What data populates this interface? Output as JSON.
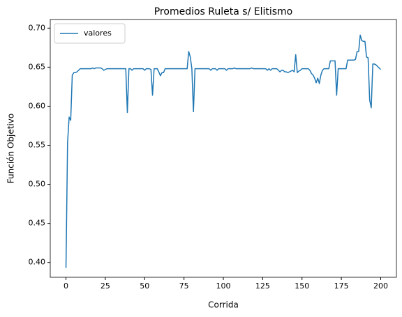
{
  "chart_data": {
    "type": "line",
    "title": "Promedios Ruleta s/ Elitismo",
    "x_label": "Corrida",
    "y_label": "Función Objetivo",
    "legend": "upper left",
    "grid": false,
    "xlim": [
      -10,
      210
    ],
    "ylim": [
      0.381,
      0.711
    ],
    "xticks": [
      0,
      25,
      50,
      75,
      100,
      125,
      150,
      175,
      200
    ],
    "yticks": [
      {
        "value": 0.4,
        "label": "0.40"
      },
      {
        "value": 0.45,
        "label": "0.45"
      },
      {
        "value": 0.5,
        "label": "0.50"
      },
      {
        "value": 0.55,
        "label": "0.55"
      },
      {
        "value": 0.6,
        "label": "0.60"
      },
      {
        "value": 0.65,
        "label": "0.65"
      },
      {
        "value": 0.7,
        "label": "0.70"
      }
    ],
    "x": [
      0,
      1,
      2,
      3,
      4,
      5,
      6,
      7,
      8,
      9,
      10,
      11,
      12,
      13,
      14,
      15,
      16,
      17,
      18,
      19,
      20,
      21,
      22,
      23,
      24,
      25,
      26,
      27,
      28,
      29,
      30,
      31,
      32,
      33,
      34,
      35,
      36,
      37,
      38,
      39,
      40,
      41,
      42,
      43,
      44,
      45,
      46,
      47,
      48,
      49,
      50,
      51,
      52,
      53,
      54,
      55,
      56,
      57,
      58,
      59,
      60,
      61,
      62,
      63,
      64,
      65,
      66,
      67,
      68,
      69,
      70,
      71,
      72,
      73,
      74,
      75,
      76,
      77,
      78,
      79,
      80,
      81,
      82,
      83,
      84,
      85,
      86,
      87,
      88,
      89,
      90,
      91,
      92,
      93,
      94,
      95,
      96,
      97,
      98,
      99,
      100,
      101,
      102,
      103,
      104,
      105,
      106,
      107,
      108,
      109,
      110,
      111,
      112,
      113,
      114,
      115,
      116,
      117,
      118,
      119,
      120,
      121,
      122,
      123,
      124,
      125,
      126,
      127,
      128,
      129,
      130,
      131,
      132,
      133,
      134,
      135,
      136,
      137,
      138,
      139,
      140,
      141,
      142,
      143,
      144,
      145,
      146,
      147,
      148,
      149,
      150,
      151,
      152,
      153,
      154,
      155,
      156,
      157,
      158,
      159,
      160,
      161,
      162,
      163,
      164,
      165,
      166,
      167,
      168,
      169,
      170,
      171,
      172,
      173,
      174,
      175,
      176,
      177,
      178,
      179,
      180,
      181,
      182,
      183,
      184,
      185,
      186,
      187,
      188,
      189,
      190,
      191,
      192,
      193,
      194,
      195,
      196,
      197,
      198,
      199,
      200
    ],
    "series": [
      {
        "name": "valores",
        "color": "#1f77b4",
        "values": [
          0.393,
          0.553,
          0.586,
          0.582,
          0.64,
          0.643,
          0.643,
          0.644,
          0.646,
          0.648,
          0.648,
          0.648,
          0.648,
          0.648,
          0.648,
          0.648,
          0.648,
          0.649,
          0.648,
          0.649,
          0.649,
          0.649,
          0.649,
          0.648,
          0.646,
          0.647,
          0.648,
          0.648,
          0.648,
          0.648,
          0.648,
          0.648,
          0.648,
          0.648,
          0.648,
          0.648,
          0.648,
          0.648,
          0.648,
          0.592,
          0.648,
          0.648,
          0.646,
          0.648,
          0.648,
          0.648,
          0.648,
          0.648,
          0.648,
          0.648,
          0.646,
          0.648,
          0.648,
          0.648,
          0.647,
          0.614,
          0.648,
          0.648,
          0.648,
          0.644,
          0.639,
          0.643,
          0.643,
          0.648,
          0.648,
          0.648,
          0.648,
          0.648,
          0.648,
          0.648,
          0.648,
          0.648,
          0.648,
          0.648,
          0.648,
          0.648,
          0.648,
          0.648,
          0.67,
          0.663,
          0.648,
          0.593,
          0.648,
          0.648,
          0.648,
          0.648,
          0.648,
          0.648,
          0.648,
          0.648,
          0.648,
          0.648,
          0.646,
          0.648,
          0.648,
          0.648,
          0.646,
          0.648,
          0.648,
          0.648,
          0.648,
          0.648,
          0.646,
          0.648,
          0.648,
          0.648,
          0.648,
          0.649,
          0.648,
          0.648,
          0.648,
          0.648,
          0.648,
          0.648,
          0.648,
          0.648,
          0.648,
          0.648,
          0.649,
          0.648,
          0.648,
          0.648,
          0.648,
          0.648,
          0.648,
          0.648,
          0.648,
          0.648,
          0.646,
          0.648,
          0.646,
          0.648,
          0.648,
          0.648,
          0.648,
          0.646,
          0.644,
          0.646,
          0.646,
          0.644,
          0.644,
          0.643,
          0.644,
          0.645,
          0.646,
          0.644,
          0.666,
          0.643,
          0.645,
          0.646,
          0.648,
          0.648,
          0.648,
          0.648,
          0.648,
          0.646,
          0.642,
          0.64,
          0.636,
          0.63,
          0.636,
          0.629,
          0.64,
          0.646,
          0.648,
          0.648,
          0.648,
          0.648,
          0.658,
          0.658,
          0.658,
          0.658,
          0.614,
          0.648,
          0.648,
          0.648,
          0.648,
          0.648,
          0.648,
          0.659,
          0.659,
          0.659,
          0.659,
          0.659,
          0.66,
          0.67,
          0.67,
          0.691,
          0.684,
          0.683,
          0.683,
          0.663,
          0.662,
          0.608,
          0.598,
          0.654,
          0.654,
          0.653,
          0.651,
          0.649,
          0.647
        ]
      }
    ]
  }
}
